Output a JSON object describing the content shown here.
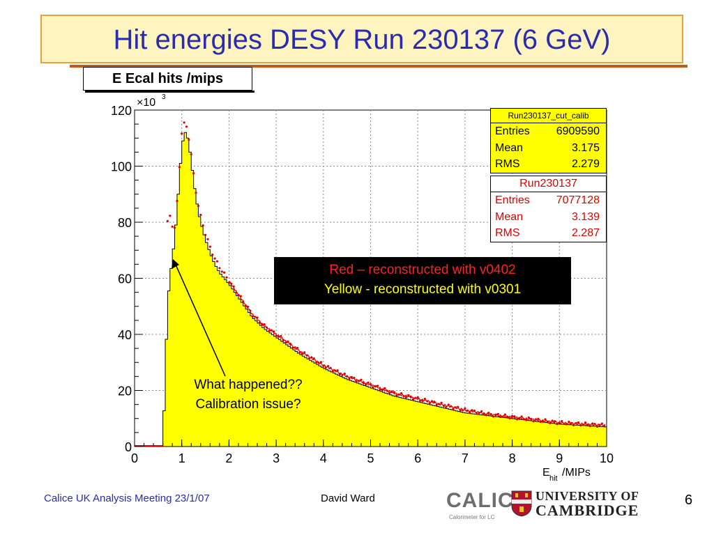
{
  "slide": {
    "title": "Hit energies DESY Run 230137 (6 GeV)",
    "page_number": "6"
  },
  "histogram": {
    "title": "E Ecal hits /mips"
  },
  "stats": [
    {
      "name": "Run230137_cut_calib",
      "entries_label": "Entries",
      "entries": "6909590",
      "mean_label": "Mean",
      "mean": "3.175",
      "rms_label": "RMS",
      "rms": "2.279",
      "color": "#ffff00"
    },
    {
      "name": "Run230137",
      "entries_label": "Entries",
      "entries": "7077128",
      "mean_label": "Mean",
      "mean": "3.139",
      "rms_label": "RMS",
      "rms": "2.287",
      "color": "#e00000"
    }
  ],
  "legend": {
    "red": "Red – reconstructed with v0402",
    "yellow": "Yellow - reconstructed with v0301"
  },
  "annotation": {
    "line1": "What happened??",
    "line2": "Calibration issue?"
  },
  "footer": {
    "left": "Calice UK Analysis Meeting 23/1/07",
    "author": "David Ward",
    "calice": "CALICE",
    "calice_sub": "Calorimeter for LC",
    "university_line1": "UNIVERSITY OF",
    "university_line2": "CAMBRIDGE"
  },
  "chart_data": {
    "type": "histogram",
    "xlabel_main": "E",
    "xlabel_sub": "hit",
    "xlabel_unit": " /MIPs",
    "y_scale_label": "×10",
    "y_scale_exp": "3",
    "xlim": [
      0,
      10
    ],
    "ylim": [
      0,
      120
    ],
    "xticks": [
      0,
      1,
      2,
      3,
      4,
      5,
      6,
      7,
      8,
      9,
      10
    ],
    "yticks": [
      0,
      20,
      40,
      60,
      80,
      100,
      120
    ],
    "grid": true,
    "series": [
      {
        "name": "Run230137_cut_calib",
        "style": "filled",
        "color": "#ffff00",
        "x": [
          0.6,
          0.7,
          0.75,
          0.8,
          0.85,
          0.9,
          0.95,
          1.0,
          1.05,
          1.1,
          1.15,
          1.2,
          1.25,
          1.3,
          1.35,
          1.4,
          1.5,
          1.6,
          1.7,
          1.8,
          2.0,
          2.25,
          2.5,
          2.75,
          3.0,
          3.5,
          4.0,
          4.5,
          5.0,
          5.5,
          6.0,
          6.5,
          7.0,
          7.5,
          8.0,
          8.5,
          9.0,
          9.5,
          10.0
        ],
        "y": [
          0,
          51,
          60,
          67,
          74,
          84,
          96,
          106,
          112,
          112,
          108,
          102,
          95,
          89,
          84,
          80,
          74,
          69,
          65,
          62,
          58,
          52,
          46,
          42,
          39,
          33,
          28,
          24,
          21,
          18,
          16,
          14,
          12,
          11,
          10,
          9,
          8,
          7.5,
          7
        ]
      },
      {
        "name": "Run230137",
        "style": "markers",
        "color": "#e00000",
        "x": [
          0.7,
          0.75,
          0.8,
          0.85,
          0.9,
          0.95,
          1.0,
          1.05,
          1.1,
          1.15,
          1.2,
          1.25,
          1.3,
          1.35,
          1.4,
          1.5,
          1.6,
          1.7,
          1.8,
          2.0,
          2.25,
          2.5,
          2.75,
          3.0,
          3.5,
          4.0,
          4.5,
          5.0,
          5.5,
          6.0,
          6.5,
          7.0,
          7.5,
          8.0,
          8.5,
          9.0,
          9.5,
          10.0
        ],
        "y": [
          80,
          82,
          79,
          78,
          87,
          100,
          112,
          115,
          114,
          110,
          104,
          97,
          91,
          86,
          82,
          76,
          71,
          67,
          64,
          59,
          53,
          47,
          43,
          40,
          34,
          29,
          25,
          22,
          19,
          17,
          15,
          13,
          11.5,
          10.5,
          9.5,
          8.5,
          8,
          7.5
        ]
      }
    ]
  }
}
